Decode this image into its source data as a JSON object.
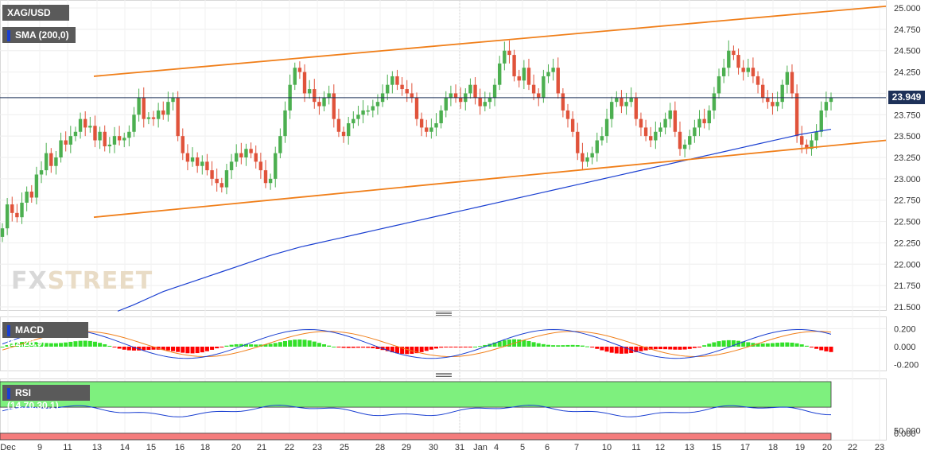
{
  "header": {
    "symbol": "XAG/USD",
    "sma_label": "SMA (200,0)",
    "sma_color": "#1a3fd1"
  },
  "watermark": {
    "fx": "FX",
    "street": "STREET"
  },
  "price_tag": "23.949",
  "macd": {
    "label": "MACD (12,26,9)",
    "ticks": [
      "0.200",
      "0.000",
      "-0.200"
    ]
  },
  "rsi": {
    "label": "RSI (14,70,30,1)",
    "ticks": [
      "50.000",
      "0.000"
    ],
    "overbought": 70,
    "oversold": 30
  },
  "x_axis": {
    "labels": [
      "Dec",
      "9",
      "11",
      "13",
      "14",
      "15",
      "16",
      "18",
      "20",
      "21",
      "22",
      "23",
      "25",
      "28",
      "29",
      "30",
      "31",
      "Jan",
      "4",
      "5",
      "6",
      "7",
      "10",
      "11",
      "12",
      "13",
      "15",
      "17",
      "18",
      "19",
      "20",
      "22",
      "23"
    ]
  },
  "colors": {
    "up": "#4caf50",
    "down": "#e0533b",
    "trend": "#f07f1a",
    "sma": "#1a3fd1",
    "macd_pos": "#33e02a",
    "macd_neg": "#ff0000",
    "macd_line": "#1a3fd1",
    "signal_line": "#f07f1a",
    "rsi_line": "#1a3fd1",
    "overbought_fill": "#7ef07e",
    "oversold_fill": "#f47c7c"
  },
  "chart_data": {
    "type": "candlestick",
    "symbol": "XAG/USD",
    "ylim": [
      21.5,
      25.0
    ],
    "yticks": [
      "25.000",
      "24.750",
      "24.500",
      "24.250",
      "24.000",
      "23.750",
      "23.500",
      "23.250",
      "23.000",
      "22.750",
      "22.500",
      "22.250",
      "22.000",
      "21.750",
      "21.500"
    ],
    "last_price": 23.949,
    "closes": [
      22.42,
      22.7,
      22.6,
      22.55,
      22.72,
      22.85,
      22.78,
      23.05,
      23.1,
      23.3,
      23.15,
      23.25,
      23.45,
      23.4,
      23.5,
      23.55,
      23.7,
      23.6,
      23.62,
      23.45,
      23.55,
      23.38,
      23.4,
      23.5,
      23.45,
      23.48,
      23.55,
      23.75,
      23.95,
      23.7,
      23.72,
      23.7,
      23.8,
      23.75,
      23.9,
      23.95,
      23.5,
      23.3,
      23.2,
      23.25,
      23.15,
      23.2,
      23.1,
      23.0,
      22.95,
      22.9,
      23.1,
      23.2,
      23.3,
      23.25,
      23.35,
      23.3,
      23.2,
      23.1,
      22.95,
      23.0,
      23.3,
      23.5,
      23.8,
      24.1,
      24.3,
      24.25,
      24.0,
      24.05,
      23.9,
      23.85,
      23.95,
      24.0,
      23.7,
      23.55,
      23.5,
      23.65,
      23.7,
      23.75,
      23.8,
      23.8,
      23.85,
      23.9,
      24.0,
      24.1,
      24.2,
      24.1,
      24.05,
      24.0,
      23.95,
      23.7,
      23.6,
      23.55,
      23.6,
      23.65,
      23.8,
      23.95,
      24.0,
      23.95,
      23.9,
      24.0,
      24.1,
      23.95,
      23.85,
      23.9,
      23.95,
      24.1,
      24.35,
      24.5,
      24.45,
      24.2,
      24.15,
      24.3,
      24.1,
      24.0,
      23.95,
      24.2,
      24.25,
      24.3,
      24.0,
      23.8,
      23.7,
      23.55,
      23.3,
      23.2,
      23.25,
      23.3,
      23.45,
      23.5,
      23.7,
      23.9,
      23.95,
      23.85,
      23.9,
      23.95,
      23.7,
      23.6,
      23.5,
      23.45,
      23.55,
      23.6,
      23.7,
      23.8,
      23.55,
      23.35,
      23.4,
      23.5,
      23.6,
      23.7,
      23.65,
      23.8,
      24.0,
      24.2,
      24.3,
      24.5,
      24.45,
      24.3,
      24.25,
      24.3,
      24.2,
      24.1,
      23.95,
      23.9,
      23.85,
      23.9,
      24.1,
      24.25,
      24.0,
      23.5,
      23.4,
      23.35,
      23.45,
      23.55,
      23.8,
      23.9,
      23.95
    ],
    "sma_200": [
      21.45,
      21.52,
      21.6,
      21.68,
      21.74,
      21.8,
      21.86,
      21.92,
      21.98,
      22.04,
      22.1,
      22.15,
      22.2,
      22.24,
      22.28,
      22.32,
      22.36,
      22.4,
      22.44,
      22.48,
      22.52,
      22.56,
      22.6,
      22.64,
      22.68,
      22.72,
      22.76,
      22.8,
      22.84,
      22.88,
      22.92,
      22.96,
      23.0,
      23.04,
      23.08,
      23.12,
      23.16,
      23.2,
      23.24,
      23.28,
      23.32,
      23.36,
      23.4,
      23.44,
      23.48,
      23.52,
      23.55,
      23.58
    ],
    "upper_trendline": [
      [
        13,
        24.2
      ],
      [
        23,
        25.02
      ]
    ],
    "lower_trendline": [
      [
        13,
        22.55
      ],
      [
        23,
        23.45
      ]
    ],
    "macd": {
      "ylim": [
        -0.3,
        0.3
      ]
    },
    "rsi": {
      "ylim": [
        0,
        100
      ]
    }
  }
}
